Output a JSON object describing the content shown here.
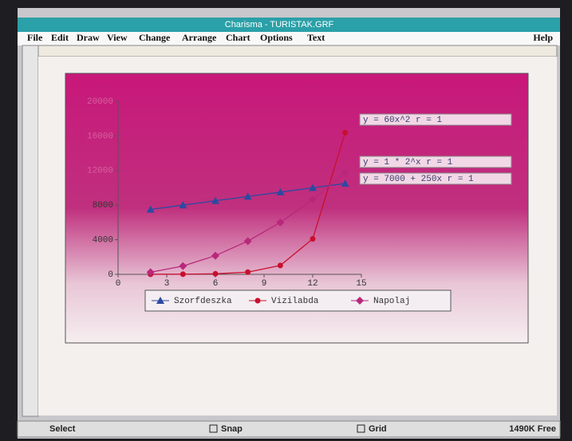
{
  "window": {
    "title": "Charisma - TURISTAK.GRF",
    "menu": [
      "File",
      "Edit",
      "Draw",
      "View",
      "Change",
      "Arrange",
      "Chart",
      "Options",
      "Text"
    ],
    "help": "Help",
    "status": [
      "Select",
      "Snap",
      "Grid",
      "1490K Free"
    ]
  },
  "chart_data": {
    "type": "line",
    "annotations": [
      "y = 60x^2  r = 1",
      "y = 1 * 2^x  r = 1",
      "y = 7000 + 250x  r = 1"
    ],
    "x": [
      2,
      4,
      6,
      8,
      10,
      12,
      14
    ],
    "series": [
      {
        "name": "Szorfdeszka",
        "color": "#2c4aa0",
        "marker": "triangle",
        "values": [
          7500,
          8000,
          8500,
          9000,
          9500,
          10000,
          10500
        ]
      },
      {
        "name": "Vizilabda",
        "color": "#c8102e",
        "marker": "circle",
        "values": [
          4,
          16,
          64,
          256,
          1024,
          4096,
          16384
        ]
      },
      {
        "name": "Napolaj",
        "color": "#b8287a",
        "marker": "diamond",
        "values": [
          240,
          960,
          2160,
          3840,
          6000,
          8640,
          11760
        ]
      }
    ],
    "xlim": [
      0,
      15
    ],
    "xticks": [
      0,
      3,
      6,
      9,
      12,
      15
    ],
    "ylim": [
      0,
      20000
    ],
    "yticks": [
      0,
      4000,
      8000,
      12000,
      16000,
      20000
    ]
  }
}
